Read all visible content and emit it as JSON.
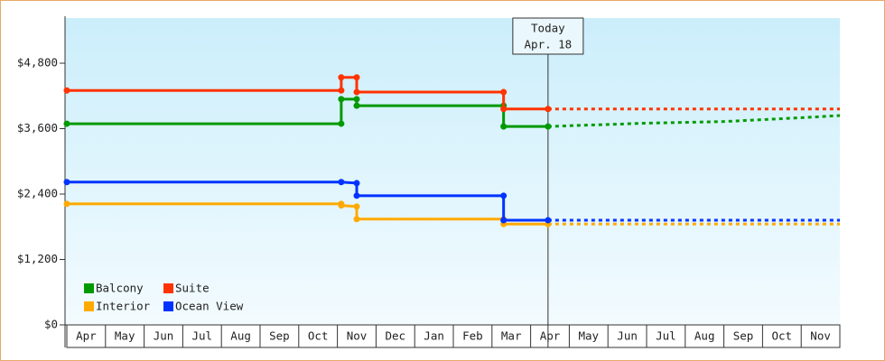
{
  "chart_data": {
    "type": "step-line",
    "categories": [
      "Apr",
      "May",
      "Jun",
      "Jul",
      "Aug",
      "Sep",
      "Oct",
      "Nov",
      "Dec",
      "Jan",
      "Feb",
      "Mar",
      "Apr",
      "May",
      "Jun",
      "Jul",
      "Aug",
      "Sep",
      "Oct",
      "Nov"
    ],
    "xlim": [
      0,
      20
    ],
    "ylim": [
      0,
      5600
    ],
    "yticks": [
      {
        "value": 0,
        "label": "$0"
      },
      {
        "value": 1200,
        "label": "$1,200"
      },
      {
        "value": 2400,
        "label": "$2,400"
      },
      {
        "value": 3600,
        "label": "$3,600"
      },
      {
        "value": 4800,
        "label": "$4,800"
      }
    ],
    "legend": "bottom-left",
    "annotation": {
      "x": 12.45,
      "lines": [
        "Today",
        "Apr. 18"
      ]
    },
    "series": [
      {
        "name": "Balcony",
        "color": "#009a00",
        "x": [
          0,
          7.1,
          7.1,
          7.5,
          7.5,
          11.3,
          11.3,
          12.45
        ],
        "values": [
          3690,
          3690,
          4140,
          4140,
          4020,
          4020,
          3640,
          3640
        ],
        "forecast": {
          "x": [
            12.45,
            15,
            17,
            19,
            20
          ],
          "values": [
            3640,
            3700,
            3730,
            3800,
            3840
          ]
        }
      },
      {
        "name": "Suite",
        "color": "#ff3300",
        "x": [
          0,
          7.1,
          7.1,
          7.5,
          7.5,
          11.3,
          11.3,
          12.45
        ],
        "values": [
          4300,
          4300,
          4540,
          4540,
          4270,
          4270,
          3960,
          3960
        ],
        "forecast": {
          "x": [
            12.45,
            20
          ],
          "values": [
            3960,
            3960
          ]
        }
      },
      {
        "name": "Interior",
        "color": "#ffaa00",
        "x": [
          0,
          7.1,
          7.1,
          7.5,
          7.5,
          11.3,
          11.3,
          12.45
        ],
        "values": [
          2220,
          2220,
          2190,
          2170,
          1940,
          1940,
          1850,
          1850
        ],
        "forecast": {
          "x": [
            12.45,
            20
          ],
          "values": [
            1850,
            1850
          ]
        }
      },
      {
        "name": "Ocean View",
        "color": "#0033ff",
        "x": [
          0,
          7.1,
          7.5,
          7.5,
          11.3,
          11.3,
          12.45
        ],
        "values": [
          2620,
          2620,
          2600,
          2370,
          2370,
          1920,
          1920
        ],
        "forecast": {
          "x": [
            12.45,
            20
          ],
          "values": [
            1920,
            1920
          ]
        }
      }
    ]
  }
}
